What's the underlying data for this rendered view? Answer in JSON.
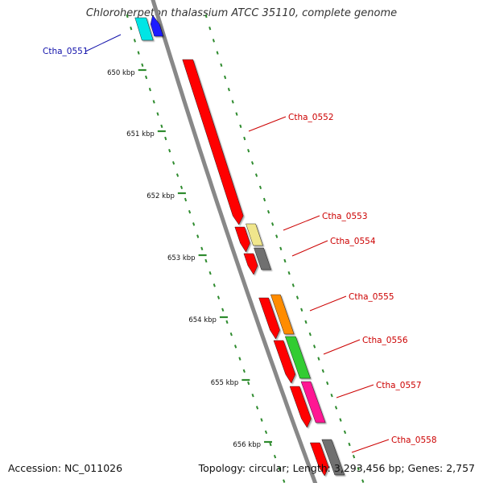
{
  "title": "Chloroherpeton thalassium ATCC 35110, complete genome",
  "footer": {
    "accession": "Accession: NC_011026",
    "summary": "Topology: circular; Length: 3,293,456 bp; Genes: 2,757"
  },
  "colors": {
    "backbone": "#888888",
    "tick": "#2e8b2e",
    "kbp_label": "#111111",
    "leader_reverse": "#cc0000",
    "leader_forward": "#1010aa"
  },
  "kbp_ticks": [
    "650 kbp",
    "651 kbp",
    "652 kbp",
    "653 kbp",
    "654 kbp",
    "655 kbp",
    "656 kbp"
  ],
  "genes": [
    {
      "name": "Ctha_0551",
      "strand": "forward",
      "color": "#1a1aff",
      "label_color": "#1010aa"
    },
    {
      "name": "Ctha_0552",
      "strand": "reverse",
      "color": "#ff0000",
      "label_color": "#cc0000"
    },
    {
      "name": "Ctha_0553",
      "strand": "reverse",
      "color": "#ff0000",
      "label_color": "#cc0000"
    },
    {
      "name": "Ctha_0554",
      "strand": "reverse",
      "color": "#ff0000",
      "label_color": "#cc0000"
    },
    {
      "name": "Ctha_0555",
      "strand": "reverse",
      "color": "#ff0000",
      "label_color": "#cc0000"
    },
    {
      "name": "Ctha_0556",
      "strand": "reverse",
      "color": "#ff0000",
      "label_color": "#cc0000"
    },
    {
      "name": "Ctha_0557",
      "strand": "reverse",
      "color": "#ff0000",
      "label_color": "#cc0000"
    },
    {
      "name": "Ctha_0558",
      "strand": "reverse",
      "color": "#ff0000",
      "label_color": "#cc0000"
    }
  ],
  "feature_blocks": [
    {
      "color": "#00e5e5"
    },
    {
      "color": "#f0e68c"
    },
    {
      "color": "#707070"
    },
    {
      "color": "#ff8c00"
    },
    {
      "color": "#33cc33"
    },
    {
      "color": "#ff1493"
    },
    {
      "color": "#707070"
    }
  ]
}
